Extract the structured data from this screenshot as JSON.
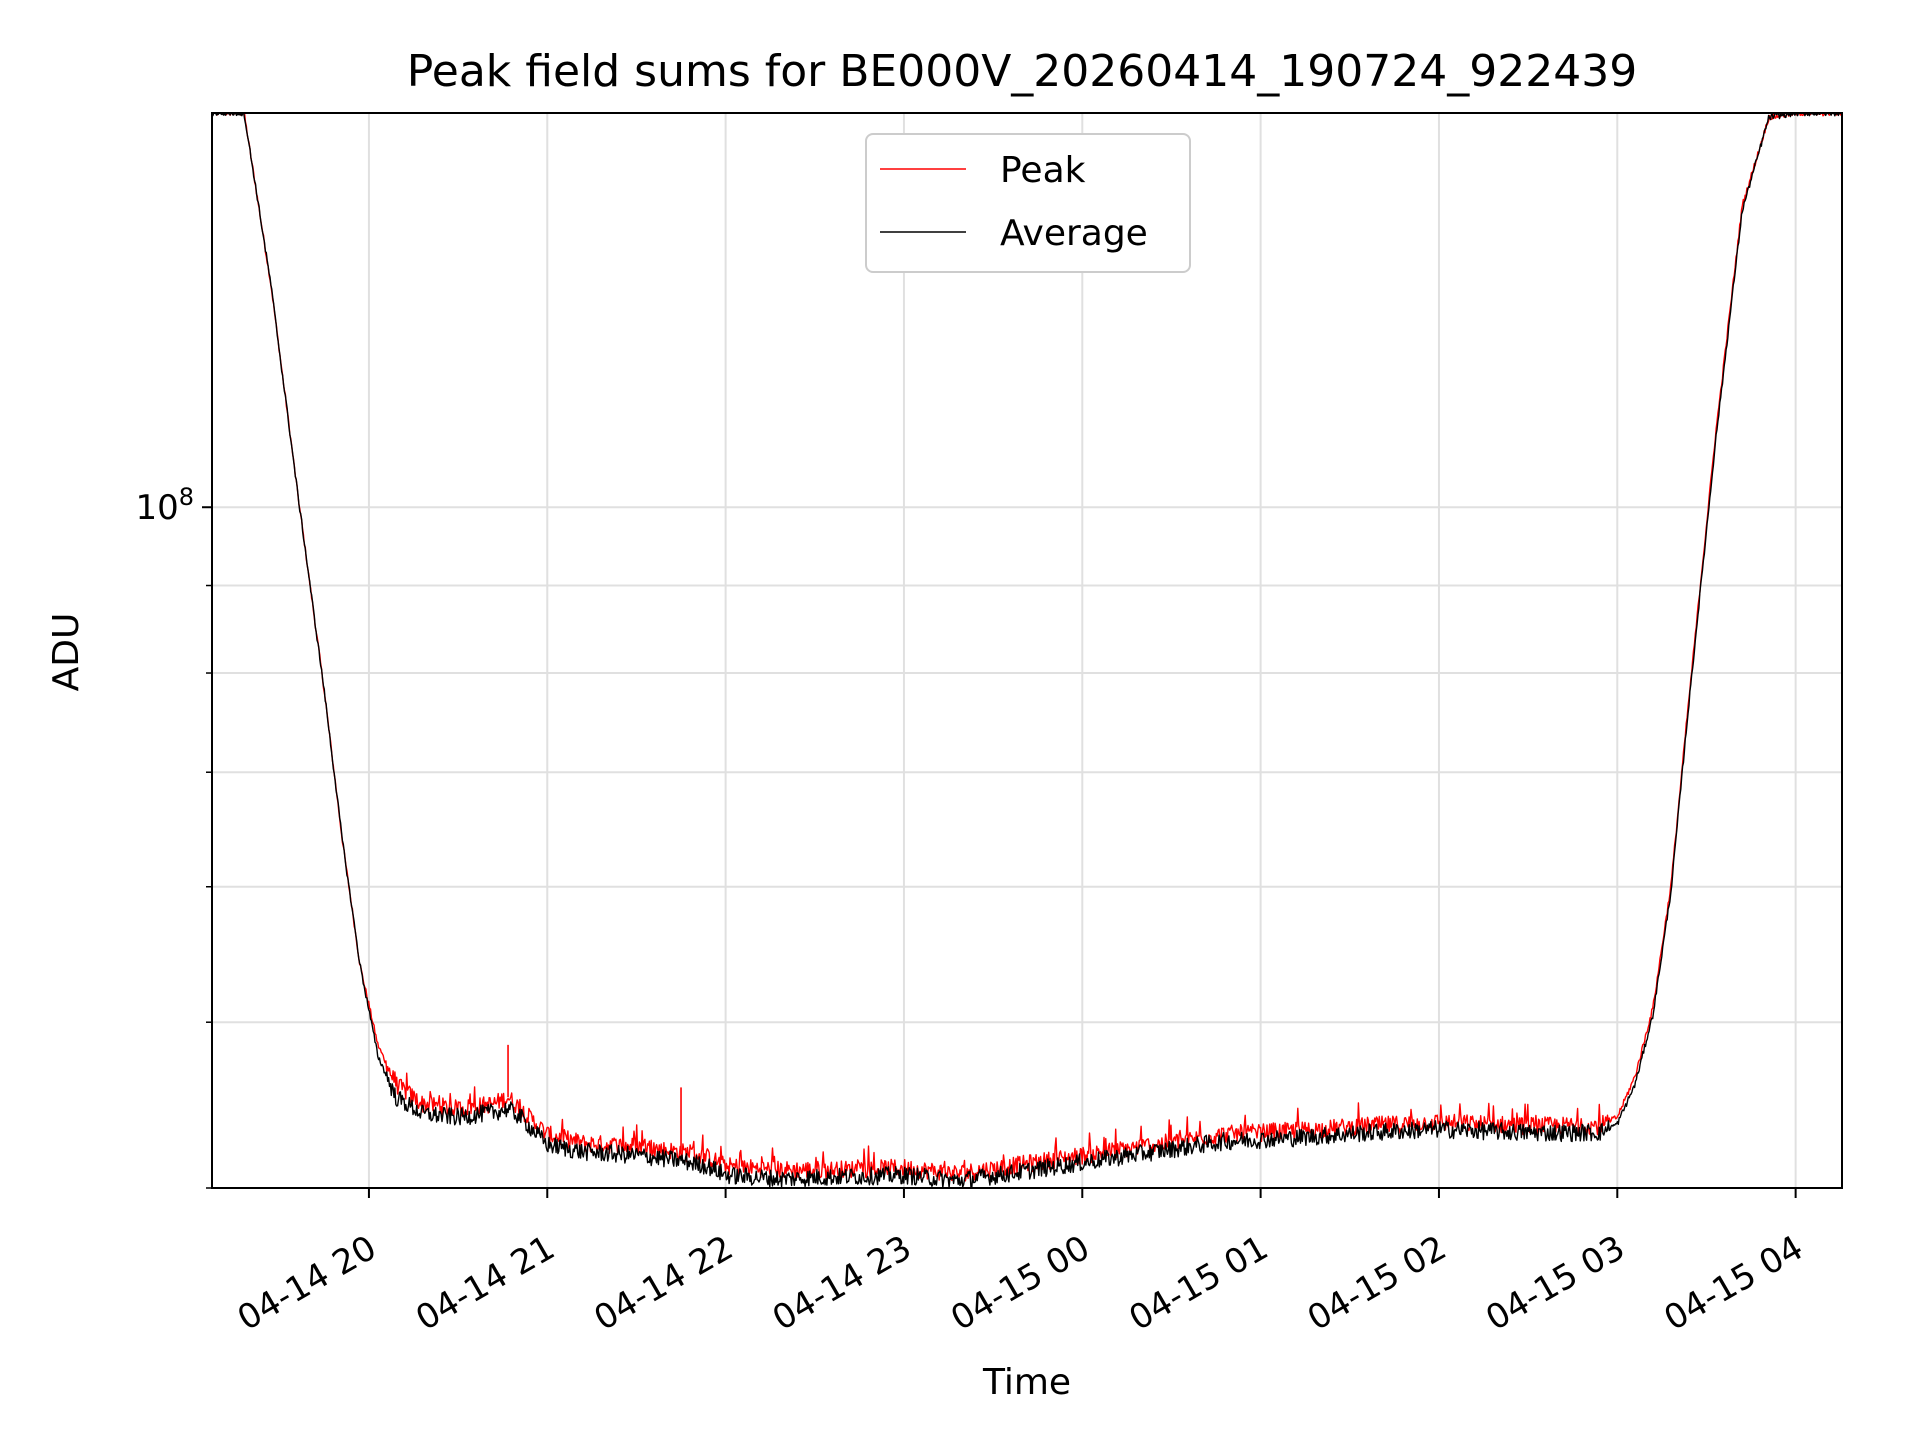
{
  "chart_data": {
    "type": "line",
    "title": "Peak field sums for BE000V_20260414_190724_922439",
    "xlabel": "Time",
    "ylabel": "ADU",
    "yscale": "log",
    "ylim": [
      40000000,
      170000000
    ],
    "xlim": [
      19.12,
      28.26
    ],
    "grid": true,
    "legend_position": "upper-center",
    "x_ticks": [
      {
        "value": 20,
        "label": "04-14 20"
      },
      {
        "value": 21,
        "label": "04-14 21"
      },
      {
        "value": 22,
        "label": "04-14 22"
      },
      {
        "value": 23,
        "label": "04-14 23"
      },
      {
        "value": 24,
        "label": "04-15 00"
      },
      {
        "value": 25,
        "label": "04-15 01"
      },
      {
        "value": 26,
        "label": "04-15 02"
      },
      {
        "value": 27,
        "label": "04-15 03"
      },
      {
        "value": 28,
        "label": "04-15 04"
      }
    ],
    "y_major_ticks": [
      {
        "value": 100000000,
        "base": "10",
        "exp": "8"
      }
    ],
    "y_minor_ticks": [
      40000000,
      50000000,
      60000000,
      70000000,
      80000000,
      90000000,
      200000000
    ],
    "series": [
      {
        "name": "Peak",
        "color": "#ff0000",
        "x": [
          19.12,
          19.3,
          19.45,
          19.6,
          19.75,
          19.85,
          19.95,
          20.05,
          20.15,
          20.3,
          20.5,
          20.7,
          20.78,
          20.85,
          21.0,
          21.2,
          21.5,
          21.75,
          21.9,
          22.0,
          22.3,
          22.6,
          23.0,
          23.3,
          23.6,
          24.0,
          24.4,
          24.8,
          25.2,
          25.6,
          26.0,
          26.5,
          26.9,
          27.0,
          27.1,
          27.2,
          27.3,
          27.4,
          27.55,
          27.7,
          27.85,
          28.0,
          28.26
        ],
        "y": [
          170000000,
          170000000,
          135000000,
          102000000,
          78000000,
          64000000,
          54000000,
          48500000,
          46000000,
          44800000,
          44500000,
          44800000,
          45200000,
          44500000,
          43000000,
          42500000,
          42300000,
          42000000,
          41700000,
          41200000,
          41000000,
          41000000,
          41100000,
          40800000,
          41200000,
          41800000,
          42400000,
          43000000,
          43200000,
          43500000,
          43700000,
          43500000,
          43500000,
          44000000,
          46500000,
          51000000,
          60000000,
          77000000,
          110000000,
          150000000,
          169000000,
          170000000,
          170000000
        ]
      },
      {
        "name": "Average",
        "color": "#000000",
        "x": [
          19.12,
          19.3,
          19.45,
          19.6,
          19.75,
          19.85,
          19.95,
          20.05,
          20.15,
          20.3,
          20.5,
          20.7,
          20.78,
          20.85,
          21.0,
          21.2,
          21.5,
          21.75,
          21.9,
          22.0,
          22.3,
          22.6,
          23.0,
          23.3,
          23.6,
          24.0,
          24.4,
          24.8,
          25.2,
          25.6,
          26.0,
          26.5,
          26.9,
          27.0,
          27.1,
          27.2,
          27.3,
          27.4,
          27.55,
          27.7,
          27.85,
          28.0,
          28.26
        ],
        "y": [
          170000000,
          170000000,
          135000000,
          102000000,
          78000000,
          64000000,
          54000000,
          47800000,
          45200000,
          44200000,
          44000000,
          44300000,
          44500000,
          44000000,
          42400000,
          42000000,
          41800000,
          41500000,
          41200000,
          40700000,
          40500000,
          40600000,
          40700000,
          40400000,
          40800000,
          41400000,
          42000000,
          42600000,
          42800000,
          43100000,
          43300000,
          43100000,
          43100000,
          43600000,
          46000000,
          50500000,
          59500000,
          76500000,
          109000000,
          149000000,
          169000000,
          170000000,
          170000000
        ]
      }
    ],
    "spikes": [
      {
        "series": "Peak",
        "x": 20.78,
        "y": 48500000
      },
      {
        "series": "Peak",
        "x": 21.75,
        "y": 45800000
      }
    ]
  }
}
